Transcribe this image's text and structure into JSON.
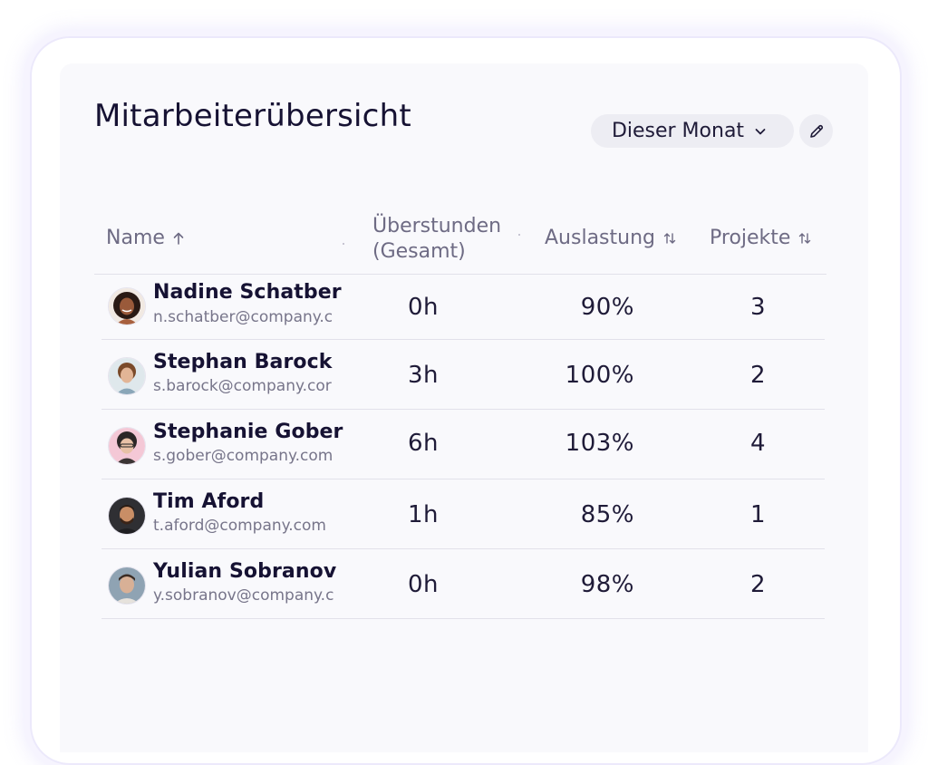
{
  "title": "Mitarbeiterübersicht",
  "filter": {
    "label": "Dieser Monat"
  },
  "columns": {
    "name": "Name",
    "overtime_line1": "Überstunden",
    "overtime_line2": "(Gesamt)",
    "utilization": "Auslastung",
    "projects": "Projekte"
  },
  "employees": [
    {
      "name": "Nadine Schatber",
      "email": "n.schatber@company.c",
      "overtime": "0h",
      "utilization": "90%",
      "projects": "3"
    },
    {
      "name": "Stephan Barock",
      "email": "s.barock@company.cor",
      "overtime": "3h",
      "utilization": "100%",
      "projects": "2"
    },
    {
      "name": "Stephanie Gober",
      "email": "s.gober@company.com",
      "overtime": "6h",
      "utilization": "103%",
      "projects": "4"
    },
    {
      "name": "Tim Aford",
      "email": "t.aford@company.com",
      "overtime": "1h",
      "utilization": "85%",
      "projects": "1"
    },
    {
      "name": "Yulian Sobranov",
      "email": "y.sobranov@company.c",
      "overtime": "0h",
      "utilization": "98%",
      "projects": "2"
    }
  ],
  "icons": {
    "filter": "chevron-down-icon",
    "edit": "pencil-icon",
    "name_sort": "arrow-up-icon",
    "utilization_sort": "sort-arrows-icon",
    "projects_sort": "sort-arrows-icon"
  }
}
